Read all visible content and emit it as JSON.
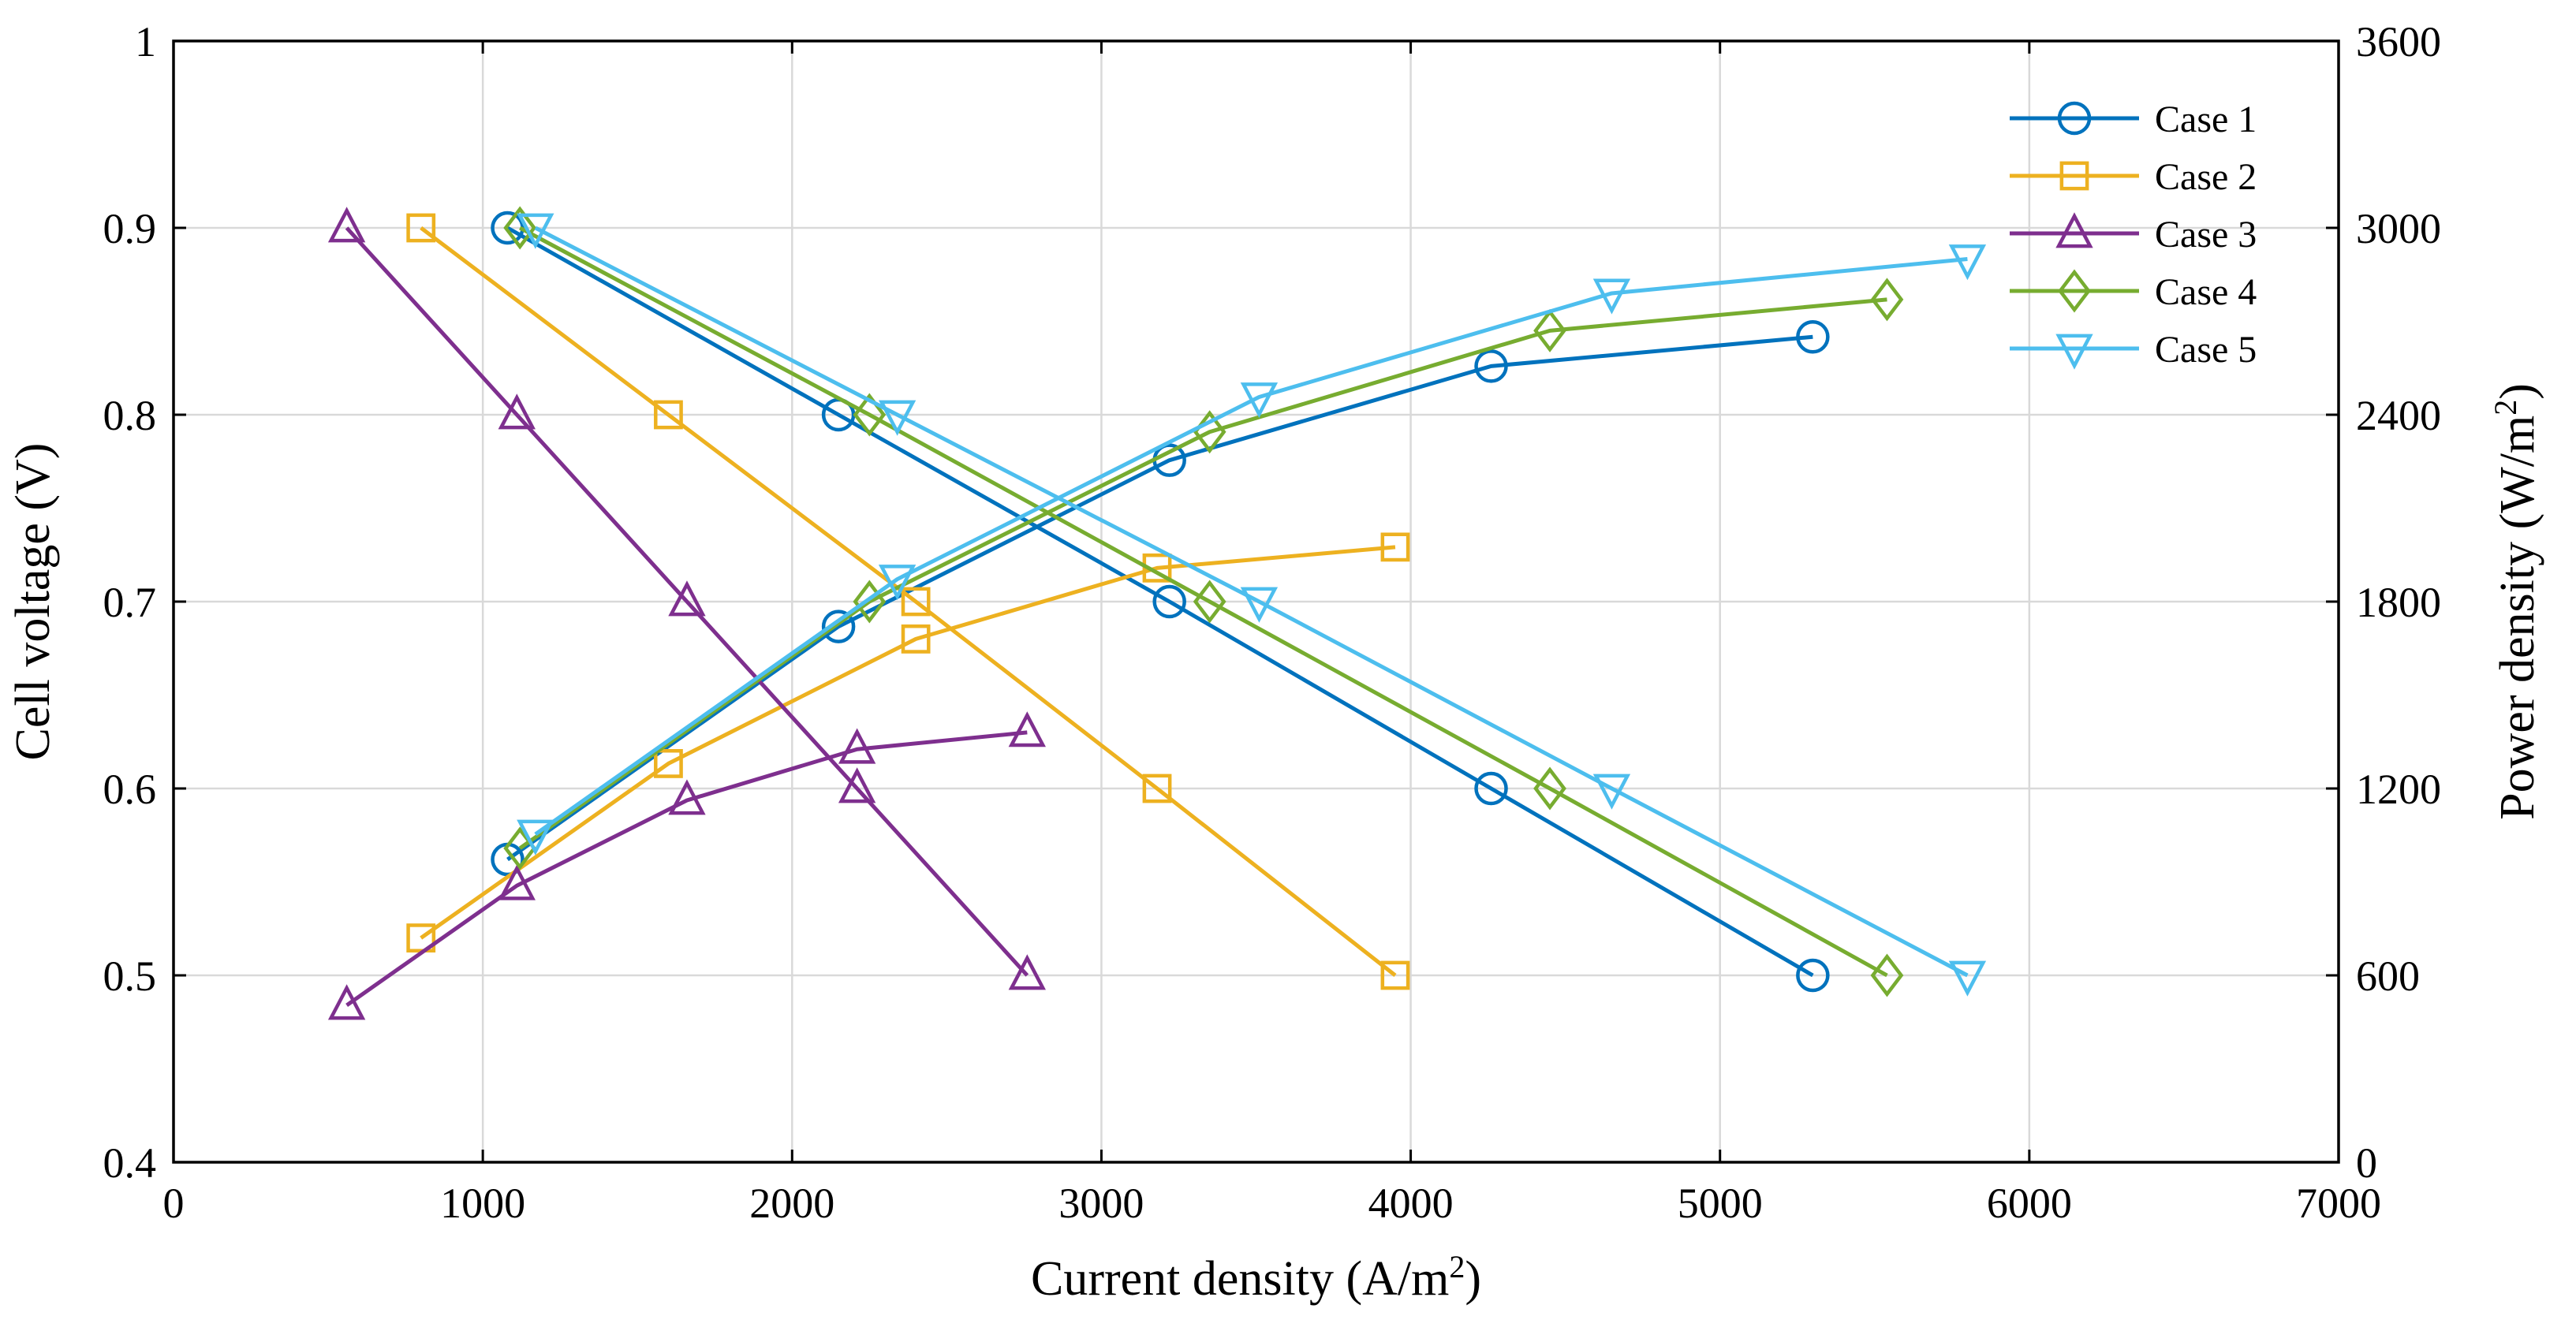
{
  "chart_data": {
    "type": "line",
    "title": "",
    "xlabel": "Current density (A/m",
    "xlabel_sup": "2",
    "xlabel_end": ")",
    "ylabel": "Cell voltage (V)",
    "y2label": "Power density (W/m",
    "y2label_sup": "2",
    "y2label_end": ")",
    "xlim": [
      0,
      7000
    ],
    "ylim": [
      0.4,
      1.0
    ],
    "y2lim": [
      0,
      3600
    ],
    "grid": true,
    "legend_position": "top-right",
    "x_ticks": [
      0,
      1000,
      2000,
      3000,
      4000,
      5000,
      6000,
      7000
    ],
    "x_tick_labels": [
      "0",
      "1000",
      "2000",
      "3000",
      "4000",
      "5000",
      "6000",
      "7000"
    ],
    "y_ticks": [
      0.4,
      0.5,
      0.6,
      0.7,
      0.8,
      0.9,
      1.0
    ],
    "y_tick_labels": [
      "0.4",
      "0.5",
      "0.6",
      "0.7",
      "0.8",
      "0.9",
      "1"
    ],
    "y2_ticks": [
      0,
      600,
      1200,
      1800,
      2400,
      3000,
      3600
    ],
    "y2_tick_labels": [
      "0",
      "600",
      "1200",
      "1800",
      "2400",
      "3000",
      "3600"
    ],
    "series": [
      {
        "name": "Case 1",
        "color": "#0072BD",
        "marker": "circle",
        "voltage": {
          "x": [
            1080,
            2150,
            3220,
            4260,
            5300
          ],
          "y": [
            0.9,
            0.8,
            0.7,
            0.6,
            0.5
          ]
        },
        "power": {
          "x": [
            1080,
            2150,
            3220,
            4260,
            5300
          ],
          "y": [
            972,
            1720,
            2254,
            2556,
            2650
          ]
        }
      },
      {
        "name": "Case 2",
        "color": "#EDB120",
        "marker": "square",
        "voltage": {
          "x": [
            800,
            1600,
            2400,
            3180,
            3950
          ],
          "y": [
            0.9,
            0.8,
            0.7,
            0.6,
            0.5
          ]
        },
        "power": {
          "x": [
            800,
            1600,
            2400,
            3180,
            3950
          ],
          "y": [
            720,
            1280,
            1680,
            1908,
            1975
          ]
        }
      },
      {
        "name": "Case 3",
        "color": "#7E2F8E",
        "marker": "triangle-up",
        "voltage": {
          "x": [
            560,
            1110,
            1660,
            2210,
            2760
          ],
          "y": [
            0.9,
            0.8,
            0.7,
            0.6,
            0.5
          ]
        },
        "power": {
          "x": [
            560,
            1110,
            1660,
            2210,
            2760
          ],
          "y": [
            504,
            888,
            1162,
            1326,
            1380
          ]
        }
      },
      {
        "name": "Case 4",
        "color": "#77AC30",
        "marker": "diamond",
        "voltage": {
          "x": [
            1120,
            2250,
            3350,
            4450,
            5540
          ],
          "y": [
            0.9,
            0.8,
            0.7,
            0.6,
            0.5
          ]
        },
        "power": {
          "x": [
            1120,
            2250,
            3350,
            4450,
            5540
          ],
          "y": [
            1008,
            1800,
            2345,
            2670,
            2770
          ]
        }
      },
      {
        "name": "Case 5",
        "color": "#4DBEEE",
        "marker": "triangle-down",
        "voltage": {
          "x": [
            1170,
            2340,
            3510,
            4650,
            5800
          ],
          "y": [
            0.9,
            0.8,
            0.7,
            0.6,
            0.5
          ]
        },
        "power": {
          "x": [
            1170,
            2340,
            3510,
            4650,
            5800
          ],
          "y": [
            1053,
            1872,
            2457,
            2790,
            2900
          ]
        }
      }
    ]
  }
}
